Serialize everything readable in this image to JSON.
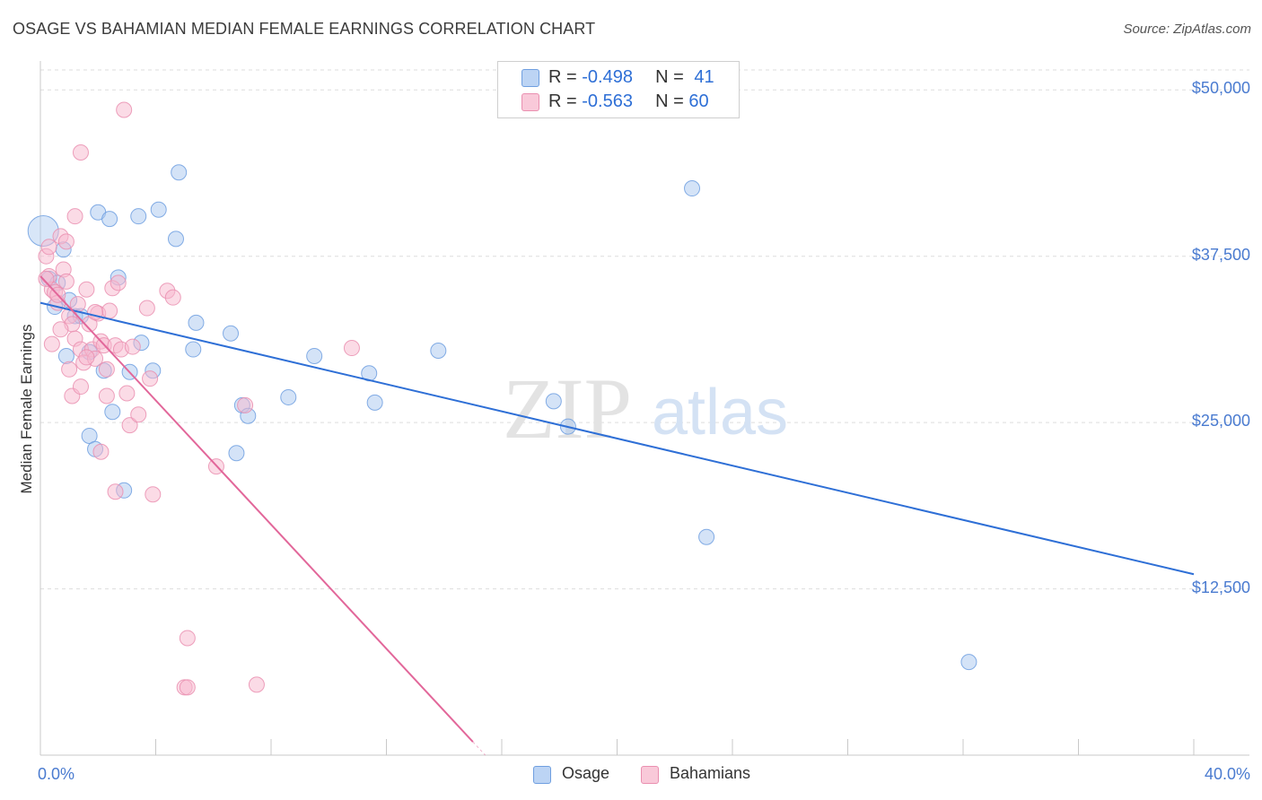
{
  "header": {
    "title": "OSAGE VS BAHAMIAN MEDIAN FEMALE EARNINGS CORRELATION CHART",
    "source": "Source: ZipAtlas.com"
  },
  "legend": {
    "rows": [
      {
        "r_label": "R =",
        "r_value": "-0.498",
        "n_label": "N =",
        "n_value": "41"
      },
      {
        "r_label": "R =",
        "r_value": "-0.563",
        "n_label": "N =",
        "n_value": "60"
      }
    ]
  },
  "watermark": {
    "zip": "ZIP",
    "atlas": "atlas"
  },
  "colors": {
    "osage_fill": "#a9c8f0",
    "osage_stroke": "#6f9fe0",
    "osage_line": "#2e6fd6",
    "bahamian_fill": "#f7b8cd",
    "bahamian_stroke": "#ea8fb0",
    "bahamian_line": "#e2679a",
    "tick_label": "#4a7bd0",
    "grid": "#dddddd"
  },
  "chart_data": {
    "type": "scatter",
    "title": "OSAGE VS BAHAMIAN MEDIAN FEMALE EARNINGS CORRELATION CHART",
    "xlabel": "",
    "ylabel": "Median Female Earnings",
    "xlim": [
      0,
      40
    ],
    "ylim": [
      0,
      51500
    ],
    "y_ticks": [
      12500,
      25000,
      37500,
      50000
    ],
    "y_tick_labels": [
      "$12,500",
      "$25,000",
      "$37,500",
      "$50,000"
    ],
    "x_tick_labels": [
      "0.0%",
      "40.0%"
    ],
    "grid": "horizontal dashed",
    "legend_position": "top-center",
    "series": [
      {
        "name": "Osage",
        "r": -0.498,
        "n": 41,
        "trend": {
          "x0": 0.0,
          "y0": 34000,
          "x1": 40.0,
          "y1": 13600
        },
        "points": [
          [
            0.1,
            39400
          ],
          [
            0.8,
            38000
          ],
          [
            0.3,
            35800
          ],
          [
            2.7,
            35900
          ],
          [
            0.5,
            33700
          ],
          [
            1.0,
            34200
          ],
          [
            1.2,
            33000
          ],
          [
            0.9,
            30000
          ],
          [
            1.7,
            30300
          ],
          [
            2.2,
            28900
          ],
          [
            3.1,
            28800
          ],
          [
            3.5,
            31000
          ],
          [
            3.9,
            28900
          ],
          [
            2.0,
            40800
          ],
          [
            2.4,
            40300
          ],
          [
            3.4,
            40500
          ],
          [
            4.1,
            41000
          ],
          [
            4.8,
            43800
          ],
          [
            4.7,
            38800
          ],
          [
            5.4,
            32500
          ],
          [
            5.3,
            30500
          ],
          [
            6.6,
            31700
          ],
          [
            7.0,
            26300
          ],
          [
            7.2,
            25500
          ],
          [
            6.8,
            22700
          ],
          [
            8.6,
            26900
          ],
          [
            9.5,
            30000
          ],
          [
            11.4,
            28700
          ],
          [
            11.6,
            26500
          ],
          [
            13.8,
            30400
          ],
          [
            17.8,
            26600
          ],
          [
            18.3,
            24700
          ],
          [
            22.6,
            42600
          ],
          [
            23.1,
            16400
          ],
          [
            32.2,
            7000
          ],
          [
            1.7,
            24000
          ],
          [
            1.9,
            23000
          ],
          [
            2.5,
            25800
          ],
          [
            2.9,
            19900
          ],
          [
            1.4,
            33000
          ],
          [
            0.6,
            35500
          ]
        ]
      },
      {
        "name": "Bahamians",
        "r": -0.563,
        "n": 60,
        "trend": {
          "x0": 0.0,
          "y0": 36000,
          "x1": 15.0,
          "y1": 1000
        },
        "points": [
          [
            0.2,
            37500
          ],
          [
            0.3,
            36000
          ],
          [
            0.4,
            35000
          ],
          [
            0.5,
            34800
          ],
          [
            0.6,
            34000
          ],
          [
            0.7,
            39000
          ],
          [
            0.8,
            36500
          ],
          [
            0.9,
            35600
          ],
          [
            1.0,
            33000
          ],
          [
            1.1,
            32400
          ],
          [
            1.2,
            31300
          ],
          [
            1.3,
            33900
          ],
          [
            1.4,
            30500
          ],
          [
            1.5,
            29500
          ],
          [
            1.6,
            35000
          ],
          [
            1.7,
            32400
          ],
          [
            1.8,
            30500
          ],
          [
            1.9,
            29800
          ],
          [
            2.0,
            33200
          ],
          [
            2.1,
            31100
          ],
          [
            2.2,
            30800
          ],
          [
            2.3,
            29000
          ],
          [
            2.4,
            33400
          ],
          [
            2.5,
            35100
          ],
          [
            2.6,
            30800
          ],
          [
            2.8,
            30500
          ],
          [
            3.0,
            27200
          ],
          [
            3.1,
            24800
          ],
          [
            3.4,
            25600
          ],
          [
            3.7,
            33600
          ],
          [
            3.8,
            28300
          ],
          [
            3.9,
            19600
          ],
          [
            4.4,
            34900
          ],
          [
            4.6,
            34400
          ],
          [
            5.1,
            8800
          ],
          [
            5.0,
            5100
          ],
          [
            5.1,
            5100
          ],
          [
            6.1,
            21700
          ],
          [
            7.1,
            26300
          ],
          [
            7.5,
            5300
          ],
          [
            10.8,
            30600
          ],
          [
            2.9,
            48500
          ],
          [
            1.4,
            45300
          ],
          [
            1.2,
            40500
          ],
          [
            0.3,
            38200
          ],
          [
            0.6,
            34600
          ],
          [
            1.9,
            33300
          ],
          [
            2.1,
            22800
          ],
          [
            2.6,
            19800
          ],
          [
            2.7,
            35500
          ],
          [
            0.2,
            35800
          ],
          [
            0.4,
            30900
          ],
          [
            1.1,
            27000
          ],
          [
            1.4,
            27700
          ],
          [
            2.3,
            27000
          ],
          [
            1.0,
            29000
          ],
          [
            0.7,
            32000
          ],
          [
            0.9,
            38600
          ],
          [
            1.6,
            29900
          ],
          [
            3.2,
            30700
          ]
        ]
      }
    ]
  },
  "bottom_legend": [
    {
      "label": "Osage"
    },
    {
      "label": "Bahamians"
    }
  ]
}
